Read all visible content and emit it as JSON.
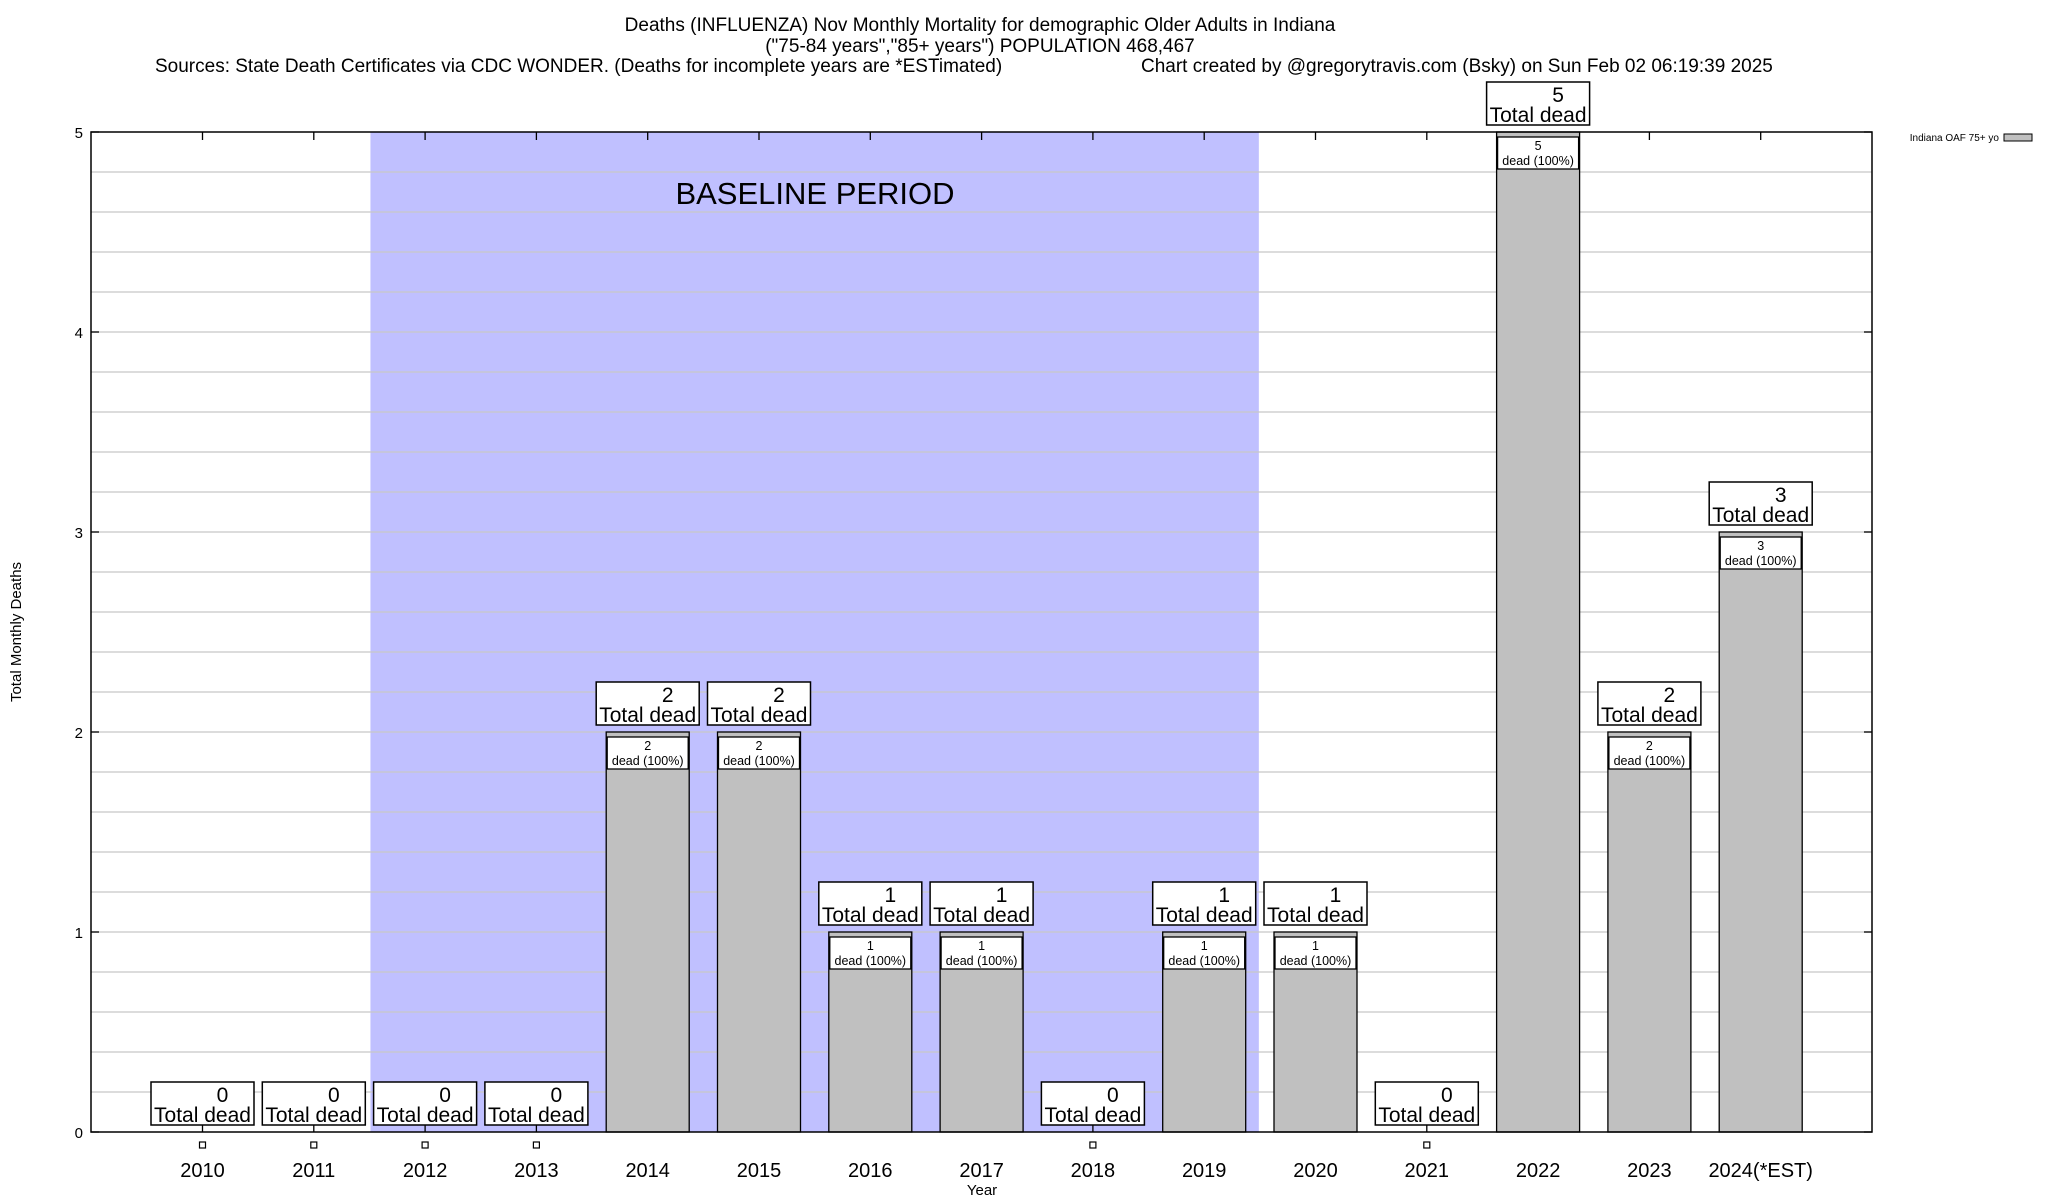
{
  "chart_data": {
    "type": "bar",
    "title_lines": [
      "Deaths (INFLUENZA) Nov Monthly Mortality for demographic Older Adults in Indiana",
      "(\"75-84 years\",\"85+ years\") POPULATION 468,467"
    ],
    "sources": "Sources: State Death Certificates via CDC WONDER. (Deaths for incomplete years are *ESTimated)",
    "credit": "Chart created by @gregorytravis.com (Bsky) on Sun Feb 02 06:19:39 2025",
    "xlabel": "Year",
    "ylabel": "Total Monthly Deaths",
    "ylim": [
      0,
      5
    ],
    "yticks": [
      "0",
      "1",
      "2",
      "3",
      "4",
      "5"
    ],
    "minor_grid_step": 0.2,
    "grid": true,
    "legend": {
      "label": "Indiana OAF 75+ yo",
      "placement": "top-right outside"
    },
    "categories": [
      "2010",
      "2011",
      "2012",
      "2013",
      "2014",
      "2015",
      "2016",
      "2017",
      "2018",
      "2019",
      "2020",
      "2021",
      "2022",
      "2023",
      "2024(*EST)"
    ],
    "values": [
      0,
      0,
      0,
      0,
      2,
      2,
      1,
      1,
      0,
      1,
      1,
      0,
      5,
      2,
      3
    ],
    "total_label_suffix": "Total dead",
    "inner_label_suffix": "dead (100%)",
    "baseline": {
      "label": "BASELINE PERIOD",
      "from_category": "2012",
      "to_category": "2019"
    },
    "colors": {
      "bar": "#c0c0c0",
      "baseline": "#c0c0ff",
      "grid": "#c8c8c8"
    }
  }
}
